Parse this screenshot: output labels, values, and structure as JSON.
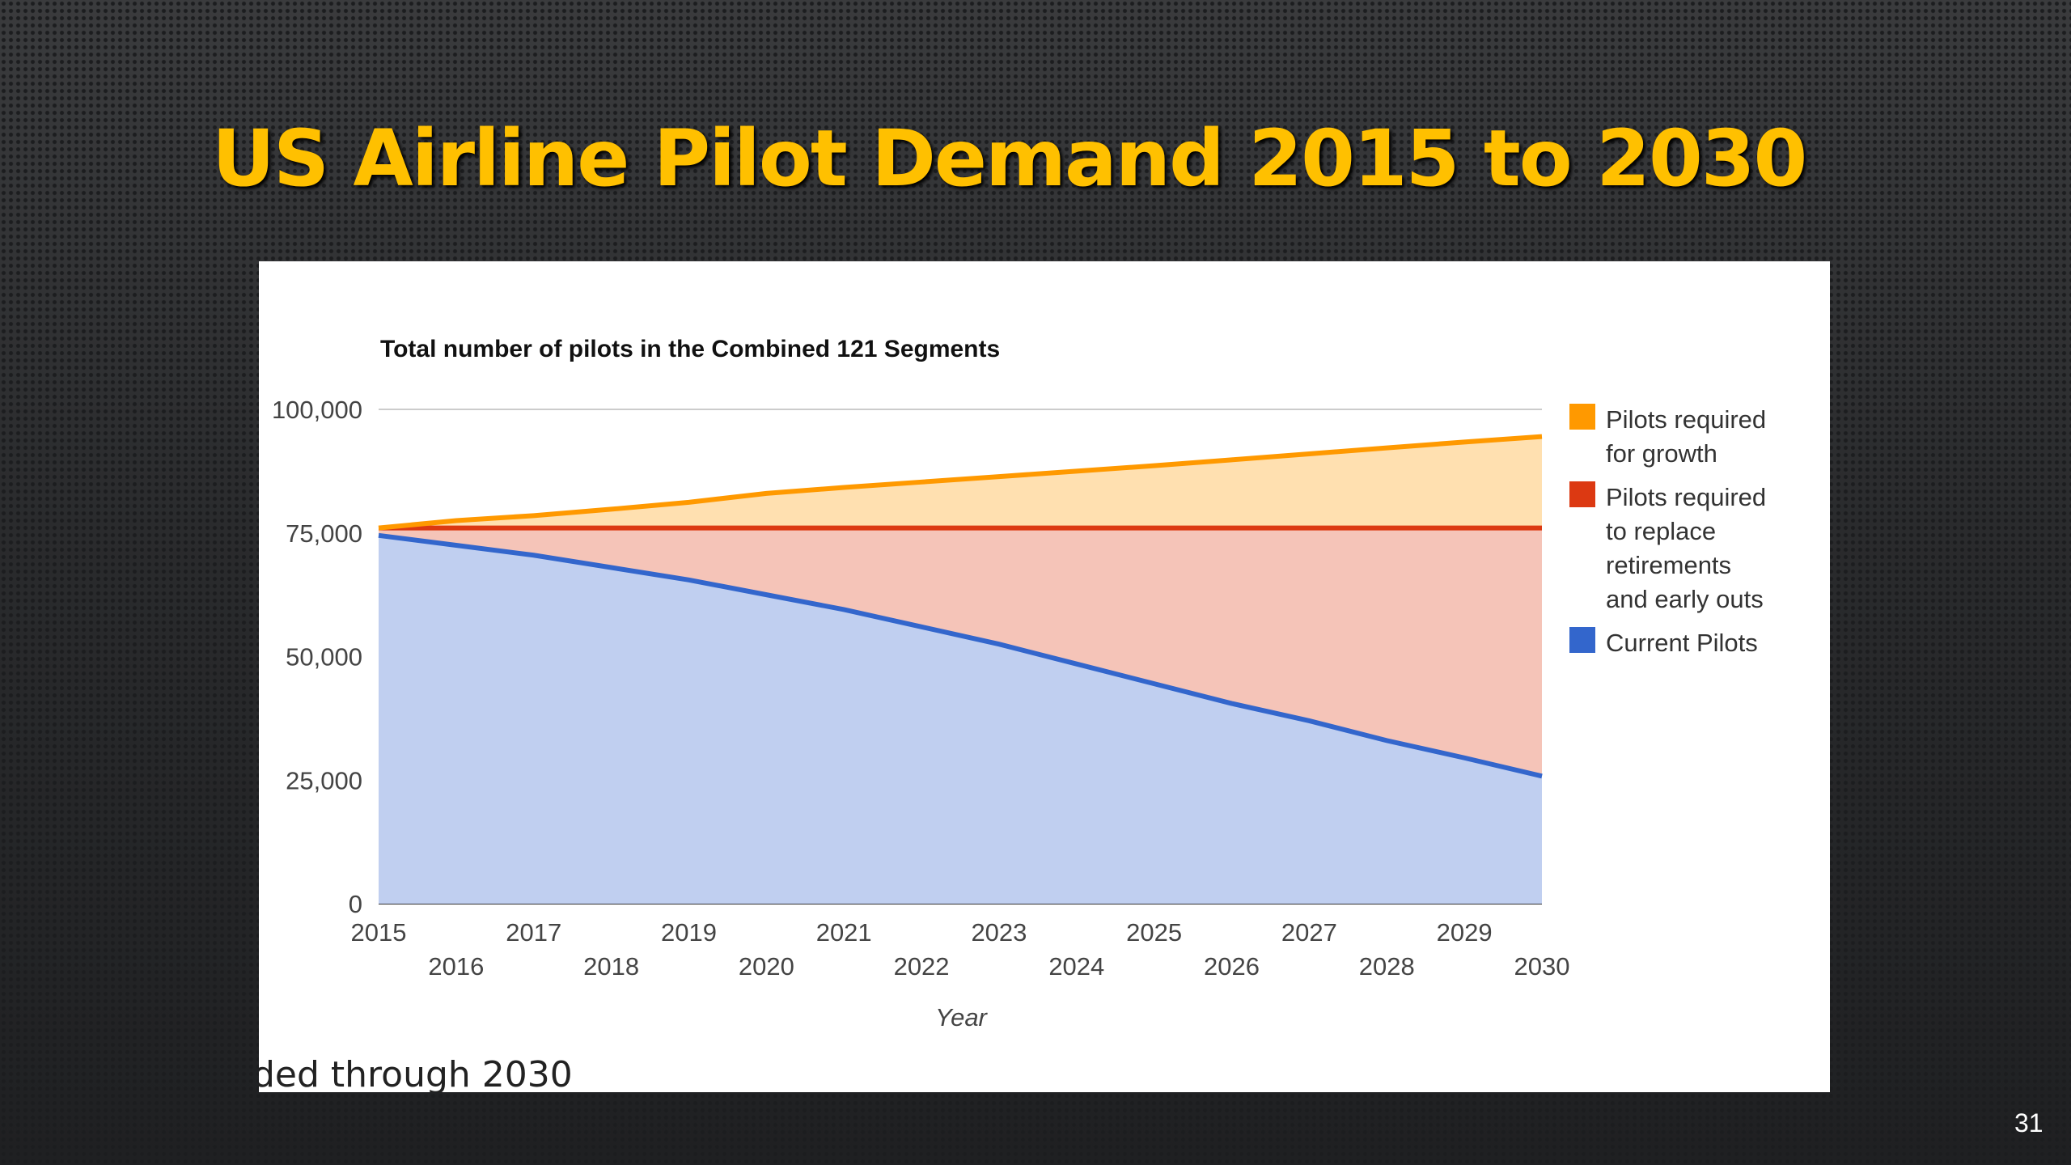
{
  "slide": {
    "title": "US Airline Pilot Demand 2015 to 2030",
    "footnote": "ded through 2030",
    "page_number": "31"
  },
  "chart_data": {
    "type": "area",
    "stacked": true,
    "title": "Total number of pilots in the Combined 121 Segments",
    "xlabel": "Year",
    "ylabel": "",
    "x": [
      2015,
      2016,
      2017,
      2018,
      2019,
      2020,
      2021,
      2022,
      2023,
      2024,
      2025,
      2026,
      2027,
      2028,
      2029,
      2030
    ],
    "xtick_labels": [
      "2015",
      "2016",
      "2017",
      "2018",
      "2019",
      "2020",
      "2021",
      "2022",
      "2023",
      "2024",
      "2025",
      "2026",
      "2027",
      "2028",
      "2029",
      "2030"
    ],
    "ylim": [
      0,
      100000
    ],
    "yticks": [
      0,
      25000,
      50000,
      75000,
      100000
    ],
    "ytick_labels": [
      "0",
      "25,000",
      "50,000",
      "75,000",
      "100,000"
    ],
    "grid": true,
    "legend_position": "right",
    "series": [
      {
        "name": "Current Pilots",
        "color": "#3366cc",
        "fill": "#c0cff0",
        "values": [
          74500,
          72500,
          70500,
          68000,
          65500,
          62500,
          59500,
          56000,
          52500,
          48500,
          44500,
          40500,
          37000,
          33000,
          29500,
          25800
        ]
      },
      {
        "name": "Pilots required to replace retirements and early outs",
        "color": "#dc3912",
        "fill": "#f5c4b8",
        "legend_lines": [
          "Pilots required",
          "to replace",
          "retirements",
          "and early outs"
        ],
        "values": [
          1500,
          3500,
          5500,
          8000,
          10500,
          13500,
          16500,
          20000,
          23500,
          27500,
          31500,
          35500,
          39000,
          43000,
          46500,
          50200
        ]
      },
      {
        "name": "Pilots required for growth",
        "color": "#ff9900",
        "fill": "#ffe0b0",
        "legend_lines": [
          "Pilots required",
          "for growth"
        ],
        "values": [
          0,
          1500,
          2500,
          3800,
          5200,
          7000,
          8200,
          9300,
          10400,
          11500,
          12600,
          13800,
          15000,
          16200,
          17400,
          18500
        ]
      }
    ]
  }
}
